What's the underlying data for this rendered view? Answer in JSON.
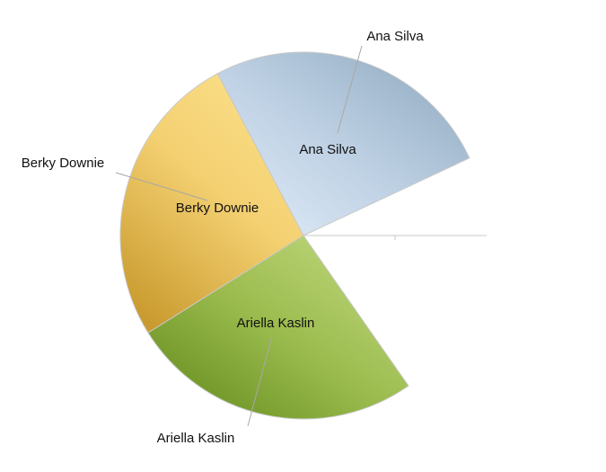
{
  "chart_data": {
    "type": "pie",
    "title": "",
    "slices": [
      {
        "label": "Ana Silva",
        "start_deg": 25,
        "end_deg": 118,
        "color": "#a9c1d6"
      },
      {
        "label": "Berky Downie",
        "start_deg": 118,
        "end_deg": 212,
        "color": "#f2cc6a"
      },
      {
        "label": "Ariella Kaslin",
        "start_deg": 212,
        "end_deg": 305,
        "color": "#9fbf56"
      }
    ],
    "gap_deg": [
      305,
      385
    ],
    "legend": "none"
  }
}
